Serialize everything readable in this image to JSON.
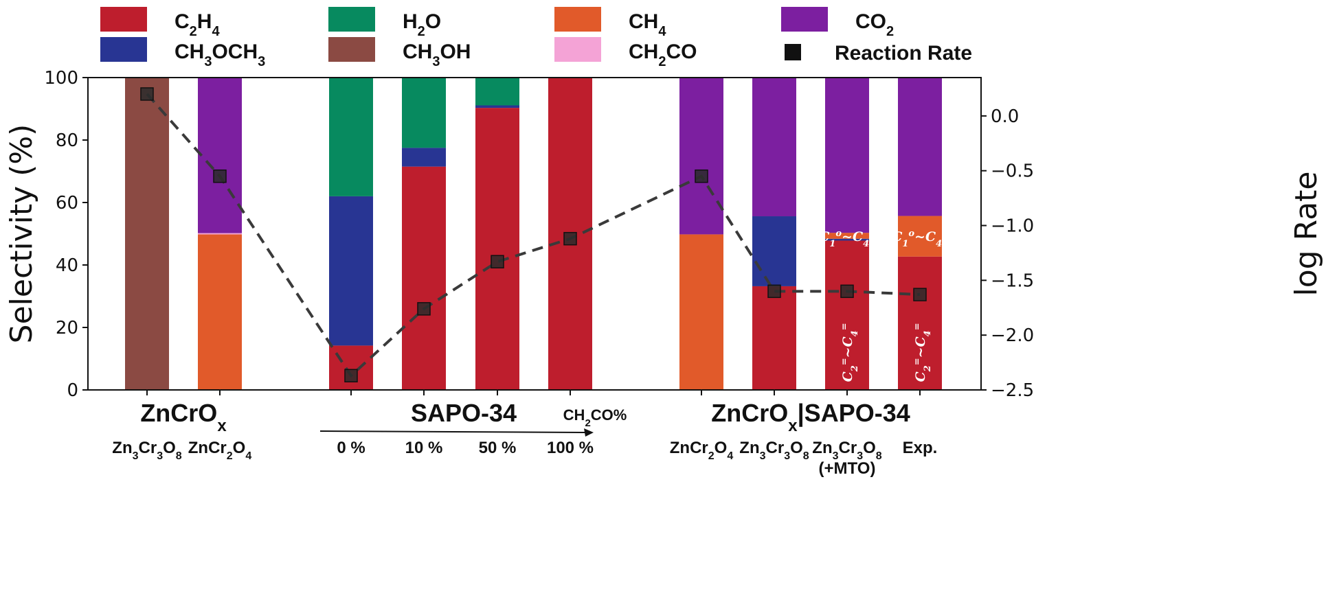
{
  "chart_data": {
    "type": "bar",
    "stacked": true,
    "y_left": {
      "label": "Selectivity (%)",
      "lim": [
        0,
        100
      ],
      "ticks": [
        "0",
        "20",
        "40",
        "60",
        "80",
        "100"
      ]
    },
    "y_right": {
      "label": "log Rate",
      "lim": [
        -2.5,
        0.35
      ],
      "ticks": [
        "0.0",
        "−0.5",
        "−1.0",
        "−1.5",
        "−2.0",
        "−2.5"
      ],
      "tick_values": [
        0.0,
        -0.5,
        -1.0,
        -1.5,
        -2.0,
        -2.5
      ]
    },
    "legend": {
      "placement": "top",
      "items": [
        {
          "key": "C2H4",
          "main": "C",
          "parts": [
            {
              "t": "C"
            },
            {
              "t": "2",
              "sub": true
            },
            {
              "t": "H"
            },
            {
              "t": "4",
              "sub": true
            }
          ],
          "color": "#be1e2d"
        },
        {
          "key": "H2O",
          "parts": [
            {
              "t": "H"
            },
            {
              "t": "2",
              "sub": true
            },
            {
              "t": "O"
            }
          ],
          "color": "#078a5f"
        },
        {
          "key": "CH4",
          "parts": [
            {
              "t": "CH"
            },
            {
              "t": "4",
              "sub": true
            }
          ],
          "color": "#e15a2a"
        },
        {
          "key": "CO2",
          "parts": [
            {
              "t": "CO"
            },
            {
              "t": "2",
              "sub": true
            }
          ],
          "color": "#7c1fa0"
        },
        {
          "key": "CH3OCH3",
          "parts": [
            {
              "t": "CH"
            },
            {
              "t": "3",
              "sub": true
            },
            {
              "t": "OCH"
            },
            {
              "t": "3",
              "sub": true
            }
          ],
          "color": "#283593"
        },
        {
          "key": "CH3OH",
          "parts": [
            {
              "t": "CH"
            },
            {
              "t": "3",
              "sub": true
            },
            {
              "t": "OH"
            }
          ],
          "color": "#8b4a43"
        },
        {
          "key": "CH2CO",
          "parts": [
            {
              "t": "CH"
            },
            {
              "t": "2",
              "sub": true
            },
            {
              "t": "CO"
            }
          ],
          "color": "#f4a3d6"
        },
        {
          "key": "rate",
          "parts": [
            {
              "t": "Reaction Rate"
            }
          ],
          "color": "#111111",
          "marker": "square"
        }
      ]
    },
    "bars": [
      {
        "category": "Zn3Cr3O8",
        "segments": [
          {
            "key": "CH3OH",
            "value": 100
          }
        ]
      },
      {
        "category": "ZnCr2O4",
        "segments": [
          {
            "key": "CH4",
            "value": 49.8
          },
          {
            "key": "CH2CO",
            "value": 0.4
          },
          {
            "key": "CO2",
            "value": 49.8
          }
        ]
      },
      {
        "category": "0 %",
        "segments": [
          {
            "key": "C2H4",
            "value": 14.2
          },
          {
            "key": "CH3OCH3",
            "value": 47.8
          },
          {
            "key": "H2O",
            "value": 38.0
          }
        ]
      },
      {
        "category": "10 %",
        "segments": [
          {
            "key": "C2H4",
            "value": 71.5
          },
          {
            "key": "CH3OCH3",
            "value": 6.0
          },
          {
            "key": "H2O",
            "value": 22.5
          }
        ]
      },
      {
        "category": "50 %",
        "segments": [
          {
            "key": "C2H4",
            "value": 90.3
          },
          {
            "key": "CH3OCH3",
            "value": 0.8
          },
          {
            "key": "H2O",
            "value": 8.9
          }
        ]
      },
      {
        "category": "100 %",
        "segments": [
          {
            "key": "C2H4",
            "value": 100
          }
        ]
      },
      {
        "category": "ZnCr2O4",
        "segments": [
          {
            "key": "CH4",
            "value": 49.8
          },
          {
            "key": "CO2",
            "value": 50.2
          }
        ]
      },
      {
        "category": "Zn3Cr3O8",
        "segments": [
          {
            "key": "C2H4",
            "value": 33.2
          },
          {
            "key": "CH3OCH3",
            "value": 22.4
          },
          {
            "key": "CO2",
            "value": 44.4
          }
        ]
      },
      {
        "category": "Zn3Cr3O8 (+MTO)",
        "segments": [
          {
            "key": "C2H4",
            "value": 47.8
          },
          {
            "key": "CH3OCH3",
            "value": 0.6
          },
          {
            "key": "CH4",
            "value": 1.9
          },
          {
            "key": "CO2",
            "value": 49.7
          }
        ]
      },
      {
        "category": "Exp.",
        "segments": [
          {
            "key": "C2H4",
            "value": 42.7
          },
          {
            "key": "CH4",
            "value": 13.0
          },
          {
            "key": "CO2",
            "value": 44.3
          }
        ]
      }
    ],
    "rate_series": {
      "name": "Reaction Rate",
      "values": [
        0.2,
        -0.55,
        -2.37,
        -1.76,
        -1.33,
        -1.12,
        -0.55,
        -1.6,
        -1.6,
        -1.63
      ]
    },
    "x_labels": [
      {
        "parts": [
          {
            "t": "Zn"
          },
          {
            "t": "3",
            "sub": true
          },
          {
            "t": "Cr"
          },
          {
            "t": "3",
            "sub": true
          },
          {
            "t": "O"
          },
          {
            "t": "8",
            "sub": true
          }
        ]
      },
      {
        "parts": [
          {
            "t": "ZnCr"
          },
          {
            "t": "2",
            "sub": true
          },
          {
            "t": "O"
          },
          {
            "t": "4",
            "sub": true
          }
        ]
      },
      {
        "parts": [
          {
            "t": "0 %"
          }
        ]
      },
      {
        "parts": [
          {
            "t": "10 %"
          }
        ]
      },
      {
        "parts": [
          {
            "t": "50 %"
          }
        ]
      },
      {
        "parts": [
          {
            "t": "100 %"
          }
        ]
      },
      {
        "parts": [
          {
            "t": "ZnCr"
          },
          {
            "t": "2",
            "sub": true
          },
          {
            "t": "O"
          },
          {
            "t": "4",
            "sub": true
          }
        ]
      },
      {
        "parts": [
          {
            "t": "Zn"
          },
          {
            "t": "3",
            "sub": true
          },
          {
            "t": "Cr"
          },
          {
            "t": "3",
            "sub": true
          },
          {
            "t": "O"
          },
          {
            "t": "8",
            "sub": true
          }
        ]
      },
      {
        "parts": [
          {
            "t": "Zn"
          },
          {
            "t": "3",
            "sub": true
          },
          {
            "t": "Cr"
          },
          {
            "t": "3",
            "sub": true
          },
          {
            "t": "O"
          },
          {
            "t": "8",
            "sub": true
          }
        ],
        "line2": "(+MTO)"
      },
      {
        "parts": [
          {
            "t": "Exp."
          }
        ]
      }
    ],
    "group_titles": [
      {
        "parts": [
          {
            "t": "ZnCrO"
          },
          {
            "t": "x",
            "sub": true
          }
        ]
      },
      {
        "parts": [
          {
            "t": "SAPO-34"
          }
        ]
      },
      {
        "parts": [
          {
            "t": "ZnCrO"
          },
          {
            "t": "x",
            "sub": true
          },
          {
            "t": "|SAPO-34"
          }
        ]
      }
    ],
    "axis_note": {
      "parts": [
        {
          "t": "CH"
        },
        {
          "t": "2",
          "sub": true
        },
        {
          "t": "CO%"
        }
      ]
    },
    "in_bar_labels": [
      {
        "bar": 8,
        "text": "C₁⁰~C₄⁰",
        "parts": [
          {
            "t": "C"
          },
          {
            "t": "1",
            "sub": true
          },
          {
            "t": "o",
            "sup": true
          },
          {
            "t": "~C"
          },
          {
            "t": "4",
            "sub": true
          },
          {
            "t": "o",
            "sup": true
          }
        ],
        "level": 49
      },
      {
        "bar": 9,
        "parts": [
          {
            "t": "C"
          },
          {
            "t": "1",
            "sub": true
          },
          {
            "t": "o",
            "sup": true
          },
          {
            "t": "~C"
          },
          {
            "t": "4",
            "sub": true
          },
          {
            "t": "o",
            "sup": true
          }
        ],
        "level": 49
      },
      {
        "bar": 8,
        "parts": [
          {
            "t": "C"
          },
          {
            "t": "2",
            "sub": true
          },
          {
            "t": "=",
            "sup": true
          },
          {
            "t": "~C"
          },
          {
            "t": "4",
            "sub": true
          },
          {
            "t": "=",
            "sup": true
          }
        ],
        "level": 12,
        "rotated": true
      },
      {
        "bar": 9,
        "parts": [
          {
            "t": "C"
          },
          {
            "t": "2",
            "sub": true
          },
          {
            "t": "=",
            "sup": true
          },
          {
            "t": "~C"
          },
          {
            "t": "4",
            "sub": true
          },
          {
            "t": "=",
            "sup": true
          }
        ],
        "level": 12,
        "rotated": true
      }
    ]
  }
}
